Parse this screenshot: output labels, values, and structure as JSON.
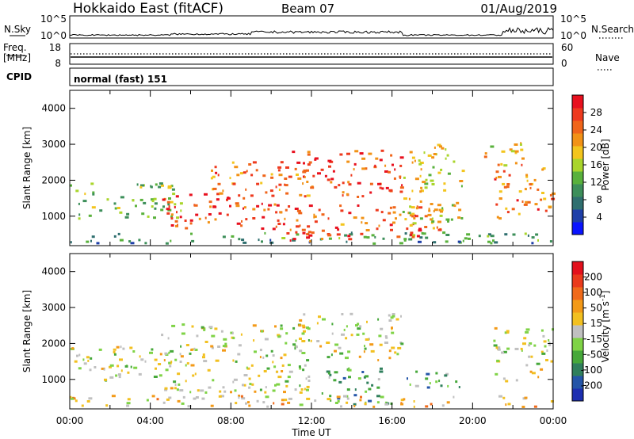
{
  "header": {
    "station": "Hokkaido East (fitACF)",
    "beam": "Beam 07",
    "date": "01/Aug/2019"
  },
  "top_panels": {
    "nsky_label": "N.Sky",
    "nsky_ticks": [
      "10^5",
      "10^0"
    ],
    "nsearch_label": "N.Search",
    "freq_label_1": "Freq.",
    "freq_label_2": "[MHz]",
    "freq_ticks": [
      "18",
      "8"
    ],
    "nave_label": "Nave",
    "nave_ticks": [
      "60",
      "0"
    ],
    "cpid_label": "CPID",
    "cpid_value": "normal (fast) 151"
  },
  "x_axis": {
    "label": "Time UT",
    "ticks": [
      "00:00",
      "04:00",
      "08:00",
      "12:00",
      "16:00",
      "20:00",
      "00:00"
    ]
  },
  "chart_data": [
    {
      "type": "heatmap",
      "panel": "power",
      "title": "",
      "xlabel": "Time UT",
      "ylabel": "Slant Range [km]",
      "x_range_hours": [
        0,
        24
      ],
      "ylim": [
        180,
        4500
      ],
      "yticks": [
        "1000",
        "2000",
        "3000",
        "4000"
      ],
      "colorbar": {
        "label": "Power [dB]",
        "ticks": [
          "28",
          "24",
          "20",
          "16",
          "12",
          "8",
          "4"
        ],
        "colors": [
          "#0a14ff",
          "#1e3fa8",
          "#2f6f6f",
          "#3d8f5a",
          "#59b13c",
          "#a9d52b",
          "#f3c51d",
          "#f29216",
          "#f0651a",
          "#ee3a1e",
          "#e8101e"
        ]
      },
      "regions": [
        {
          "t0": 0.0,
          "t1": 5.5,
          "r0": 900,
          "r1": 1900,
          "level": 0.45
        },
        {
          "t0": 0.0,
          "t1": 24.0,
          "r0": 200,
          "r1": 520,
          "level": 0.3
        },
        {
          "t0": 4.5,
          "t1": 10.5,
          "r0": 600,
          "r1": 1600,
          "level": 0.85
        },
        {
          "t0": 7.0,
          "t1": 12.0,
          "r0": 1500,
          "r1": 2500,
          "level": 0.75
        },
        {
          "t0": 11.0,
          "t1": 16.5,
          "r0": 1500,
          "r1": 2800,
          "level": 0.85
        },
        {
          "t0": 10.0,
          "t1": 18.5,
          "r0": 250,
          "r1": 1300,
          "level": 0.8
        },
        {
          "t0": 16.5,
          "t1": 19.5,
          "r0": 700,
          "r1": 3000,
          "level": 0.55
        },
        {
          "t0": 21.0,
          "t1": 24.0,
          "r0": 900,
          "r1": 2400,
          "level": 0.75
        },
        {
          "t0": 20.5,
          "t1": 22.5,
          "r0": 2300,
          "r1": 3000,
          "level": 0.6
        }
      ]
    },
    {
      "type": "heatmap",
      "panel": "velocity",
      "title": "",
      "xlabel": "Time UT",
      "ylabel": "Slant Range [km]",
      "x_range_hours": [
        0,
        24
      ],
      "ylim": [
        180,
        4500
      ],
      "yticks": [
        "1000",
        "2000",
        "3000",
        "4000"
      ],
      "colorbar": {
        "label": "Velocity [m s^-1]",
        "ticks": [
          "200",
          "100",
          "50",
          "15",
          "-15",
          "-50",
          "-100",
          "-200"
        ],
        "colors": [
          "#1d2fb0",
          "#2455a8",
          "#2f7f5c",
          "#46a83a",
          "#7fd346",
          "#c0c0c0",
          "#f2c020",
          "#f39a18",
          "#f06a1a",
          "#ea3a1c",
          "#e3101c"
        ]
      },
      "regions": [
        {
          "t0": 0.0,
          "t1": 5.5,
          "r0": 900,
          "r1": 1900,
          "level": 0.5
        },
        {
          "t0": 4.5,
          "t1": 12.0,
          "r0": 600,
          "r1": 2500,
          "level": 0.5
        },
        {
          "t0": 11.0,
          "t1": 16.5,
          "r0": 1500,
          "r1": 2800,
          "level": 0.5
        },
        {
          "t0": 12.5,
          "t1": 16.0,
          "r0": 250,
          "r1": 1300,
          "level": 0.3
        },
        {
          "t0": 16.5,
          "t1": 19.5,
          "r0": 700,
          "r1": 1200,
          "level": 0.3
        },
        {
          "t0": 0.0,
          "t1": 24.0,
          "r0": 200,
          "r1": 520,
          "level": 0.6
        },
        {
          "t0": 21.0,
          "t1": 24.0,
          "r0": 900,
          "r1": 2400,
          "level": 0.5
        }
      ]
    }
  ]
}
